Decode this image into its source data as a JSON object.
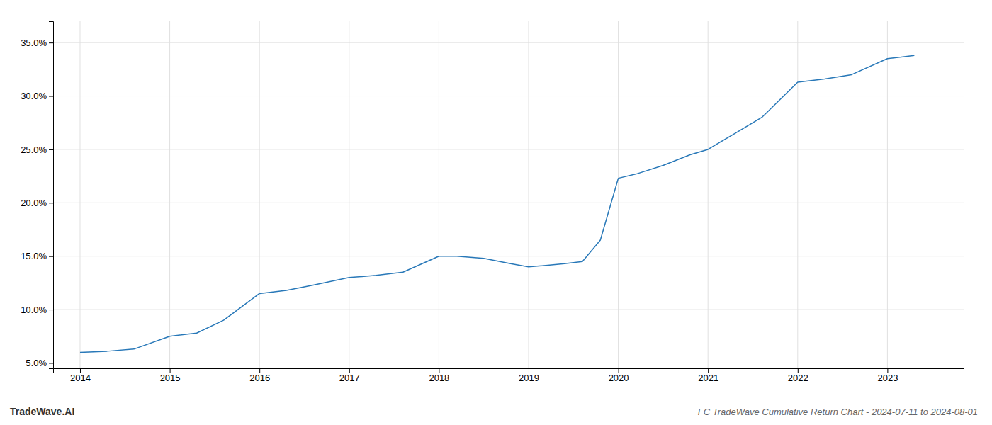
{
  "chart_data": {
    "type": "line",
    "title": "FC TradeWave Cumulative Return Chart - 2024-07-11 to 2024-08-01",
    "annotations": [
      "TradeWave.AI"
    ],
    "x": [
      2014.0,
      2014.3,
      2014.6,
      2015.0,
      2015.3,
      2015.6,
      2016.0,
      2016.3,
      2016.6,
      2017.0,
      2017.3,
      2017.6,
      2018.0,
      2018.2,
      2018.5,
      2018.8,
      2019.0,
      2019.15,
      2019.4,
      2019.6,
      2019.8,
      2020.0,
      2020.2,
      2020.5,
      2020.8,
      2021.0,
      2021.3,
      2021.6,
      2022.0,
      2022.3,
      2022.6,
      2023.0,
      2023.3
    ],
    "values": [
      6.0,
      6.1,
      6.3,
      7.5,
      7.8,
      9.0,
      11.5,
      11.8,
      12.3,
      13.0,
      13.2,
      13.5,
      15.0,
      15.0,
      14.8,
      14.3,
      14.0,
      14.1,
      14.3,
      14.5,
      16.5,
      22.3,
      22.7,
      23.5,
      24.5,
      25.0,
      26.5,
      28.0,
      31.3,
      31.6,
      32.0,
      33.5,
      33.8
    ],
    "color": "#2878b8",
    "xlim": [
      2013.7,
      2023.85
    ],
    "xticks": [
      2014,
      2015,
      2016,
      2017,
      2018,
      2019,
      2020,
      2021,
      2022,
      2023
    ],
    "ylim": [
      4.5,
      37.0
    ],
    "yticks": [
      {
        "value": 5.0,
        "label": "5.0%"
      },
      {
        "value": 10.0,
        "label": "10.0%"
      },
      {
        "value": 15.0,
        "label": "15.0%"
      },
      {
        "value": 20.0,
        "label": "20.0%"
      },
      {
        "value": 25.0,
        "label": "25.0%"
      },
      {
        "value": 30.0,
        "label": "30.0%"
      },
      {
        "value": 35.0,
        "label": "35.0%"
      }
    ],
    "grid": true
  }
}
